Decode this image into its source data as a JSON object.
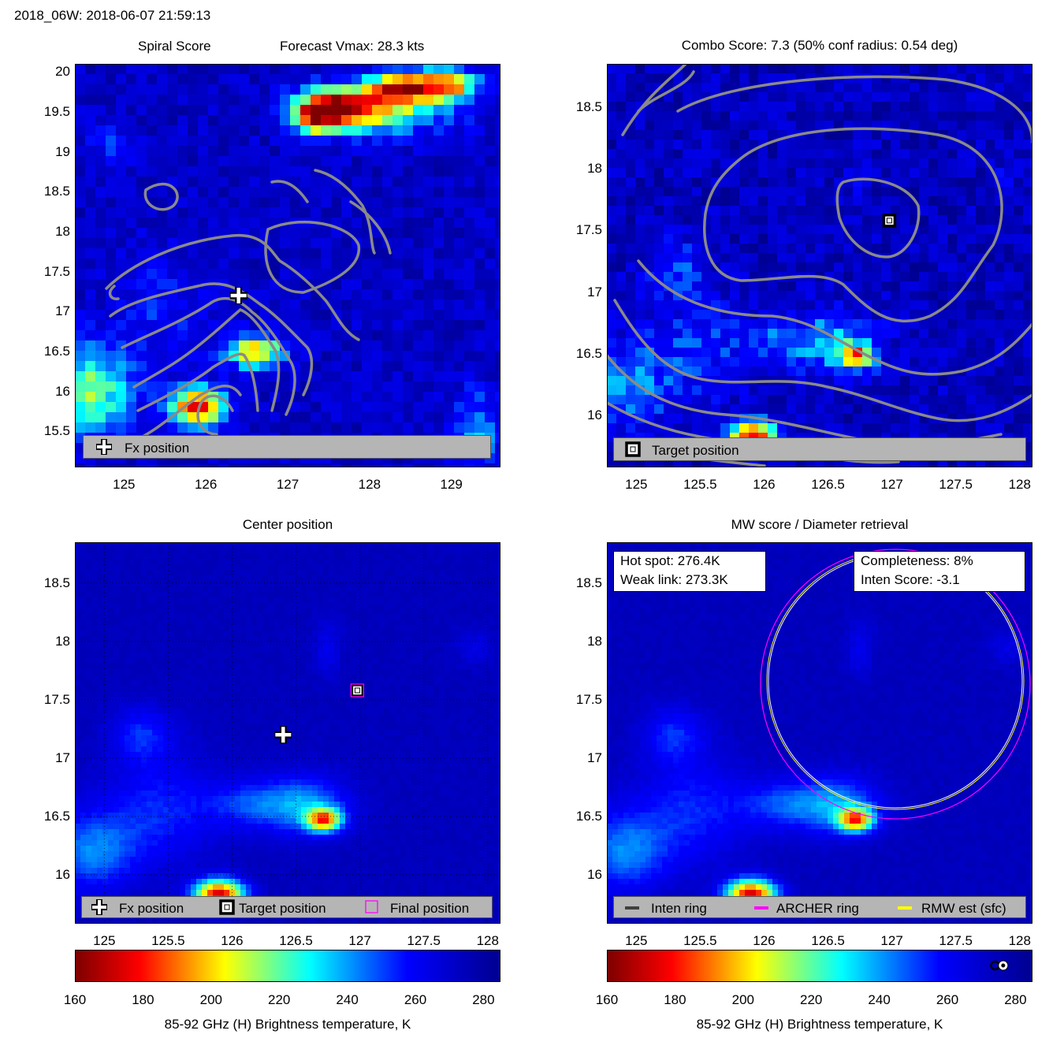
{
  "figure_title": "2018_06W: 2018-06-07 21:59:13",
  "colormap": {
    "stops": [
      "#7f0000",
      "#ff0000",
      "#ffff00",
      "#00ffff",
      "#0000ff",
      "#00008f"
    ],
    "no_data_bg": "#1f4fff"
  },
  "panels": {
    "spiral": {
      "title_left": "Spiral Score",
      "title_right": "Forecast Vmax: 28.3 kts",
      "legend": {
        "fx_label": "Fx position"
      }
    },
    "combo": {
      "title": "Combo Score: 7.3  (50% conf radius: 0.54 deg)",
      "legend": {
        "target_label": "Target position"
      }
    },
    "center": {
      "title": "Center position",
      "legend": {
        "fx_label": "Fx position",
        "target_label": "Target position",
        "final_label": "Final position"
      }
    },
    "mw": {
      "title": "MW score / Diameter retrieval",
      "info_left": {
        "hot_spot": "Hot spot: 276.4K",
        "weak_link": "Weak link: 273.3K"
      },
      "info_right": {
        "completeness": "Completeness: 8%",
        "inten_score": "Inten Score: -3.1"
      },
      "legend": {
        "inten_ring": "Inten ring",
        "archer_ring": "ARCHER ring",
        "rmw_est": "RMW est (sfc)"
      },
      "ring_colors": {
        "inten": "#404040",
        "archer": "#ff00ff",
        "rmw": "#ffff00"
      }
    }
  },
  "colorbar": {
    "label": "85-92 GHz (H) Brightness temperature, K",
    "ticks": [
      "160",
      "180",
      "200",
      "220",
      "240",
      "260",
      "280"
    ]
  },
  "chart_data": [
    {
      "type": "heatmap",
      "name": "Spiral Score",
      "xlim": [
        124.4,
        129.6
      ],
      "ylim": [
        15.05,
        20.1
      ],
      "xticks": [
        "125",
        "126",
        "127",
        "128",
        "129"
      ],
      "yticks": [
        "15.5",
        "16",
        "16.5",
        "17",
        "17.5",
        "18",
        "18.5",
        "19",
        "19.5",
        "20"
      ],
      "fx_position": [
        126.4,
        17.2
      ]
    },
    {
      "type": "heatmap",
      "name": "Combo Score",
      "xlim": [
        124.77,
        128.1
      ],
      "ylim": [
        15.58,
        18.85
      ],
      "xticks": [
        "125",
        "125.5",
        "126",
        "126.5",
        "127",
        "127.5",
        "128"
      ],
      "yticks": [
        "16",
        "16.5",
        "17",
        "17.5",
        "18",
        "18.5"
      ],
      "target_position": [
        126.98,
        17.58
      ]
    },
    {
      "type": "heatmap",
      "name": "Center position",
      "xlim": [
        124.77,
        128.1
      ],
      "ylim": [
        15.58,
        18.85
      ],
      "xticks": [
        "125",
        "125.5",
        "126",
        "126.5",
        "127",
        "127.5",
        "128"
      ],
      "yticks": [
        "16",
        "16.5",
        "17",
        "17.5",
        "18",
        "18.5"
      ],
      "fx_position": [
        126.4,
        17.2
      ],
      "target_position": [
        126.98,
        17.58
      ],
      "final_position": [
        126.98,
        17.58
      ],
      "grid": true
    },
    {
      "type": "heatmap",
      "name": "MW score / Diameter retrieval",
      "xlim": [
        124.77,
        128.1
      ],
      "ylim": [
        15.58,
        18.85
      ],
      "xticks": [
        "125",
        "125.5",
        "126",
        "126.5",
        "127",
        "127.5",
        "128"
      ],
      "yticks": [
        "16",
        "16.5",
        "17",
        "17.5",
        "18",
        "18.5"
      ],
      "rings": {
        "center": [
          127.0,
          17.6
        ],
        "inten_radius_deg": 1.0,
        "archer_radius_deg": 1.05
      },
      "colorbar_markers": [
        274,
        276.4
      ]
    }
  ]
}
